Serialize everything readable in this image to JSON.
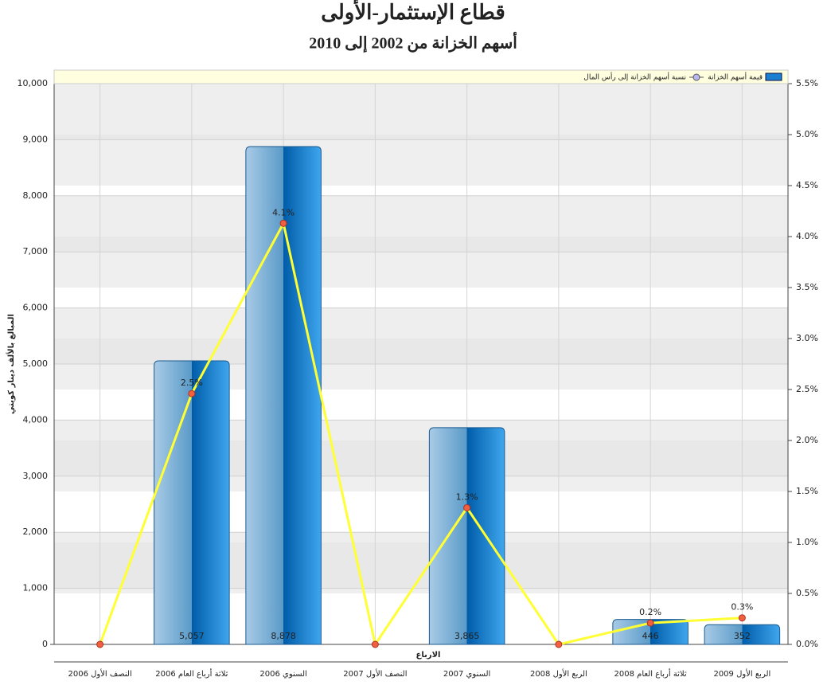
{
  "chart_data": {
    "type": "bar",
    "title": "قطاع الإستثمار-الأولى",
    "subtitle": "أسهم الخزانة من 2002 إلى 2010",
    "x_label": "الارباع",
    "y_label": "المبالغ بالألف دينار كويتي",
    "categories": [
      "النصف الأول 2006",
      "ثلاثة أرباع العام 2006",
      "السنوي 2006",
      "النصف الأول 2007",
      "السنوي 2007",
      "الربع الأول 2008",
      "ثلاثة أرباع العام 2008",
      "الربع الأول 2009"
    ],
    "series": [
      {
        "name": "قيمة أسهم الخزانة",
        "color": "#1a7fd0",
        "values": [
          0,
          5057,
          8878,
          0,
          3865,
          0,
          446,
          352
        ],
        "value_labels": [
          null,
          "5,057",
          "8,878",
          null,
          "3,865",
          null,
          "446",
          "352"
        ]
      },
      {
        "name": "نسبة أسهم الخزانة إلى رأس المال",
        "type": "line",
        "axis": "y2",
        "color": "#ffff33",
        "marker_color": "#f06040",
        "values": [
          0,
          2.46,
          4.13,
          0,
          1.34,
          0,
          0.21,
          0.26
        ],
        "value_labels": [
          null,
          "2.5%",
          "4.1%",
          null,
          "1.3%",
          null,
          "0.2%",
          "0.3%"
        ]
      }
    ],
    "ylim": [
      0,
      10000
    ],
    "yticks": [
      0,
      {
        "value": 1000,
        "label": "1,000"
      },
      {
        "value": 2000,
        "label": "2,000"
      },
      {
        "value": 3000,
        "label": "3,000"
      },
      {
        "value": 4000,
        "label": "4,000"
      },
      {
        "value": 5000,
        "label": "5,000"
      },
      {
        "value": 6000,
        "label": "6,000"
      },
      {
        "value": 7000,
        "label": "7,000"
      },
      {
        "value": 8000,
        "label": "8,000"
      },
      {
        "value": 9000,
        "label": "9,000"
      },
      {
        "value": 10000,
        "label": "10,000"
      }
    ],
    "y2lim": [
      0,
      5.5
    ],
    "y2ticks": [
      {
        "value": 0,
        "label": "0.0%"
      },
      {
        "value": 0.5,
        "label": "0.5%"
      },
      {
        "value": 1,
        "label": "1.0%"
      },
      {
        "value": 1.5,
        "label": "1.5%"
      },
      {
        "value": 2,
        "label": "2.0%"
      },
      {
        "value": 2.5,
        "label": "2.5%"
      },
      {
        "value": 3,
        "label": "3.0%"
      },
      {
        "value": 3.5,
        "label": "3.5%"
      },
      {
        "value": 4,
        "label": "4.0%"
      },
      {
        "value": 4.5,
        "label": "4.5%"
      },
      {
        "value": 5,
        "label": "5.0%"
      },
      {
        "value": 5.5,
        "label": "5.5%"
      }
    ],
    "grid": true,
    "legend": "top-right"
  }
}
